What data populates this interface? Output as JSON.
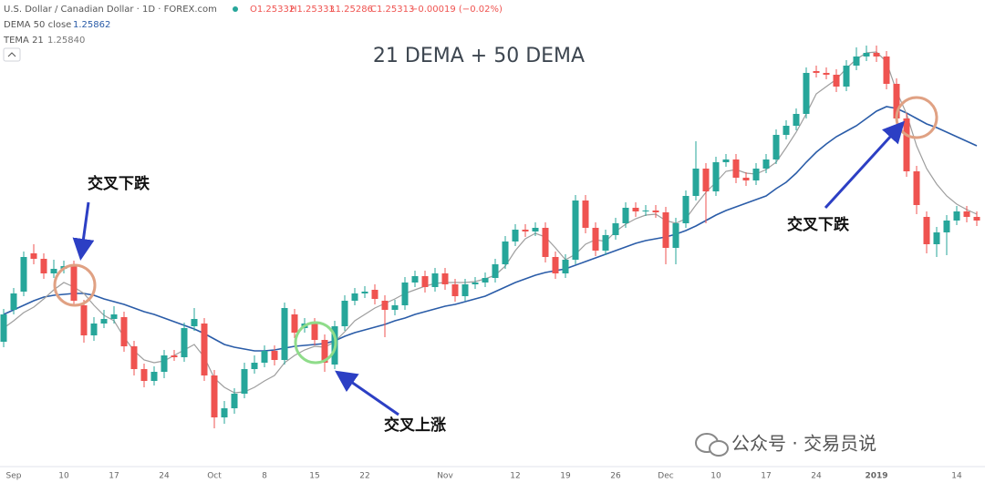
{
  "chart_data": {
    "type": "candlestick",
    "title": "21 DEMA + 50 DEMA",
    "header": {
      "symbol": "U.S. Dollar / Canadian Dollar · 1D · FOREX.com",
      "open": "O1.25332",
      "high": "H1.25333",
      "low": "L1.25286",
      "close": "C1.25313",
      "change": "−0.00019 (−0.02%)",
      "dema_value": "1.25862",
      "tema_value": "1.25840"
    },
    "annotations": [
      "交叉下跌",
      "交叉上涨",
      "交叉下跌"
    ],
    "footer": "公众号 · 交易员说",
    "up_color": "#26a69a",
    "down_color": "#ef5350",
    "ylim": [
      1.271,
      1.373
    ],
    "categories": [
      null,
      "Sep",
      null,
      null,
      null,
      null,
      "10",
      null,
      null,
      null,
      null,
      "17",
      null,
      null,
      null,
      null,
      "24",
      null,
      null,
      null,
      null,
      "Oct",
      null,
      null,
      null,
      null,
      "8",
      null,
      null,
      null,
      null,
      "15",
      null,
      null,
      null,
      null,
      "22",
      null,
      null,
      null,
      null,
      null,
      null,
      null,
      "Nov",
      null,
      null,
      null,
      null,
      null,
      null,
      "12",
      null,
      null,
      null,
      null,
      "19",
      null,
      null,
      null,
      null,
      "26",
      null,
      null,
      null,
      null,
      "Dec",
      null,
      null,
      null,
      null,
      "10",
      null,
      null,
      null,
      null,
      "17",
      null,
      null,
      null,
      null,
      "24",
      null,
      null,
      null,
      null,
      null,
      "2019",
      null,
      null,
      null,
      null,
      null,
      null,
      null,
      "14",
      null,
      null
    ],
    "open": [
      1.298,
      1.305,
      1.309,
      1.3174,
      1.3162,
      1.313,
      1.314,
      1.3146,
      1.306,
      1.2994,
      1.302,
      1.303,
      1.3034,
      1.297,
      1.292,
      1.2894,
      1.2914,
      1.295,
      1.2946,
      1.3014,
      1.302,
      1.2906,
      1.2814,
      1.2834,
      1.2866,
      1.292,
      1.2934,
      1.296,
      1.294,
      1.304,
      1.301,
      1.302,
      1.2984,
      1.293,
      1.3014,
      1.307,
      1.3086,
      1.3094,
      1.307,
      1.305,
      1.306,
      1.311,
      1.3124,
      1.31,
      1.313,
      1.3106,
      1.308,
      1.3106,
      1.311,
      1.312,
      1.315,
      1.32,
      1.3226,
      1.3222,
      1.323,
      1.3166,
      1.313,
      1.316,
      1.329,
      1.323,
      1.318,
      1.3214,
      1.324,
      1.3274,
      1.3266,
      1.3268,
      1.3264,
      1.3186,
      1.324,
      1.33,
      1.336,
      1.331,
      1.3374,
      1.338,
      1.334,
      1.3334,
      1.336,
      1.338,
      1.3434,
      1.3454,
      1.348,
      1.3574,
      1.357,
      1.3566,
      1.354,
      1.3586,
      1.3606,
      1.3614,
      1.3606,
      1.3546,
      1.347,
      1.3354,
      1.3254,
      1.3194,
      1.322,
      1.3246,
      1.3266,
      1.3254
    ],
    "high": [
      1.3052,
      1.3098,
      1.3178,
      1.3194,
      1.3174,
      1.316,
      1.3158,
      1.3158,
      1.3072,
      1.3034,
      1.305,
      1.3058,
      1.3046,
      1.2982,
      1.2932,
      1.2926,
      1.2962,
      1.2962,
      1.3022,
      1.3054,
      1.3032,
      1.2918,
      1.285,
      1.2878,
      1.2934,
      1.295,
      1.2972,
      1.2972,
      1.3066,
      1.3052,
      1.3032,
      1.3032,
      1.2996,
      1.3026,
      1.3082,
      1.3098,
      1.3102,
      1.3106,
      1.3082,
      1.3072,
      1.3122,
      1.3136,
      1.3136,
      1.3142,
      1.3142,
      1.3118,
      1.3118,
      1.3122,
      1.3132,
      1.3162,
      1.3212,
      1.3238,
      1.3238,
      1.3242,
      1.3242,
      1.3178,
      1.3172,
      1.3302,
      1.3302,
      1.3242,
      1.3226,
      1.3252,
      1.3286,
      1.3286,
      1.328,
      1.328,
      1.3276,
      1.3252,
      1.3312,
      1.342,
      1.3372,
      1.3386,
      1.3392,
      1.3392,
      1.3352,
      1.3372,
      1.3392,
      1.3446,
      1.3466,
      1.3492,
      1.3582,
      1.3586,
      1.3582,
      1.3578,
      1.3598,
      1.3626,
      1.363,
      1.363,
      1.3618,
      1.3558,
      1.3482,
      1.3366,
      1.3266,
      1.3232,
      1.3258,
      1.3278,
      1.3278,
      1.3266
    ],
    "low": [
      1.2968,
      1.304,
      1.308,
      1.315,
      1.3118,
      1.312,
      1.313,
      1.3058,
      1.2978,
      1.2982,
      1.301,
      1.302,
      1.2958,
      1.2906,
      1.288,
      1.2884,
      1.29,
      1.2938,
      1.2936,
      1.3004,
      1.2894,
      1.279,
      1.28,
      1.2822,
      1.2856,
      1.291,
      1.2924,
      1.2928,
      1.293,
      1.2988,
      1.3,
      1.2972,
      1.2914,
      1.292,
      1.3004,
      1.306,
      1.3076,
      1.3062,
      1.299,
      1.3038,
      1.305,
      1.31,
      1.3088,
      1.309,
      1.3094,
      1.3068,
      1.307,
      1.3096,
      1.31,
      1.311,
      1.314,
      1.319,
      1.321,
      1.3212,
      1.3154,
      1.3118,
      1.312,
      1.315,
      1.3218,
      1.3168,
      1.317,
      1.3204,
      1.323,
      1.3254,
      1.3256,
      1.3252,
      1.315,
      1.315,
      1.323,
      1.329,
      1.324,
      1.33,
      1.3364,
      1.3328,
      1.3322,
      1.3324,
      1.335,
      1.337,
      1.3424,
      1.3444,
      1.347,
      1.356,
      1.3556,
      1.3528,
      1.353,
      1.3576,
      1.3596,
      1.3594,
      1.3534,
      1.3458,
      1.3342,
      1.326,
      1.3174,
      1.3166,
      1.317,
      1.3236,
      1.3242,
      1.3234
    ],
    "close": [
      1.304,
      1.3086,
      1.3166,
      1.3162,
      1.313,
      1.314,
      1.3146,
      1.307,
      1.2994,
      1.302,
      1.303,
      1.304,
      1.297,
      1.292,
      1.2894,
      1.2914,
      1.295,
      1.2946,
      1.301,
      1.303,
      1.2906,
      1.2814,
      1.2834,
      1.2866,
      1.292,
      1.2934,
      1.296,
      1.294,
      1.3054,
      1.3,
      1.302,
      1.2984,
      1.2934,
      1.3014,
      1.307,
      1.3086,
      1.309,
      1.3074,
      1.305,
      1.306,
      1.311,
      1.3124,
      1.31,
      1.313,
      1.3106,
      1.308,
      1.3106,
      1.311,
      1.312,
      1.315,
      1.32,
      1.3226,
      1.3222,
      1.323,
      1.3166,
      1.313,
      1.316,
      1.329,
      1.323,
      1.318,
      1.3214,
      1.324,
      1.3274,
      1.3266,
      1.3268,
      1.3264,
      1.3186,
      1.324,
      1.33,
      1.336,
      1.331,
      1.3374,
      1.338,
      1.334,
      1.3334,
      1.336,
      1.338,
      1.3434,
      1.3454,
      1.348,
      1.357,
      1.357,
      1.3566,
      1.354,
      1.3586,
      1.3606,
      1.3614,
      1.3606,
      1.3546,
      1.347,
      1.3354,
      1.328,
      1.3194,
      1.322,
      1.3246,
      1.3266,
      1.3254,
      1.3246
    ],
    "series": [
      {
        "name": "DEMA 50 close",
        "color": "#2a5ca8",
        "values": [
          1.304,
          1.305,
          1.306,
          1.307,
          1.3078,
          1.3082,
          1.3084,
          1.3086,
          1.3086,
          1.3082,
          1.3074,
          1.3068,
          1.3062,
          1.3054,
          1.3046,
          1.304,
          1.3032,
          1.3024,
          1.3016,
          1.3008,
          1.2998,
          1.2986,
          1.2974,
          1.2968,
          1.2964,
          1.296,
          1.296,
          1.2962,
          1.2966,
          1.297,
          1.2972,
          1.2974,
          1.2976,
          1.2982,
          1.2992,
          1.3,
          1.3006,
          1.3012,
          1.3018,
          1.3026,
          1.3032,
          1.304,
          1.3046,
          1.3052,
          1.3058,
          1.3062,
          1.3068,
          1.3074,
          1.308,
          1.309,
          1.31,
          1.311,
          1.3118,
          1.3126,
          1.3132,
          1.3136,
          1.314,
          1.3148,
          1.3156,
          1.3164,
          1.3172,
          1.318,
          1.3188,
          1.3196,
          1.3202,
          1.3206,
          1.321,
          1.3216,
          1.3224,
          1.3234,
          1.3246,
          1.3258,
          1.3268,
          1.3276,
          1.3284,
          1.3292,
          1.33,
          1.3316,
          1.333,
          1.335,
          1.3374,
          1.3396,
          1.3414,
          1.343,
          1.3442,
          1.3454,
          1.347,
          1.3486,
          1.3496,
          1.3492,
          1.3482,
          1.347,
          1.3458,
          1.345,
          1.344,
          1.343,
          1.342,
          1.341
        ]
      },
      {
        "name": "TEMA 21",
        "color": "#9e9e9e",
        "values": [
          1.301,
          1.3026,
          1.3044,
          1.3056,
          1.3074,
          1.3094,
          1.311,
          1.31,
          1.3086,
          1.306,
          1.3038,
          1.3026,
          1.299,
          1.296,
          1.294,
          1.2934,
          1.2938,
          1.295,
          1.2962,
          1.2974,
          1.2946,
          1.29,
          1.288,
          1.2868,
          1.287,
          1.288,
          1.2894,
          1.2906,
          1.2934,
          1.295,
          1.2962,
          1.297,
          1.2968,
          1.298,
          1.3002,
          1.3026,
          1.304,
          1.3054,
          1.3064,
          1.3074,
          1.3086,
          1.3094,
          1.3102,
          1.3108,
          1.311,
          1.311,
          1.311,
          1.3112,
          1.3118,
          1.3126,
          1.3146,
          1.318,
          1.3206,
          1.3218,
          1.321,
          1.3186,
          1.316,
          1.3172,
          1.3194,
          1.3204,
          1.32,
          1.3222,
          1.3238,
          1.325,
          1.3258,
          1.326,
          1.3246,
          1.324,
          1.325,
          1.328,
          1.3308,
          1.333,
          1.3354,
          1.3358,
          1.335,
          1.3348,
          1.3358,
          1.3374,
          1.3406,
          1.344,
          1.348,
          1.3524,
          1.354,
          1.3556,
          1.358,
          1.36,
          1.3614,
          1.3616,
          1.3594,
          1.353,
          1.348,
          1.341,
          1.336,
          1.3326,
          1.33,
          1.3282,
          1.327,
          1.326
        ]
      }
    ]
  }
}
